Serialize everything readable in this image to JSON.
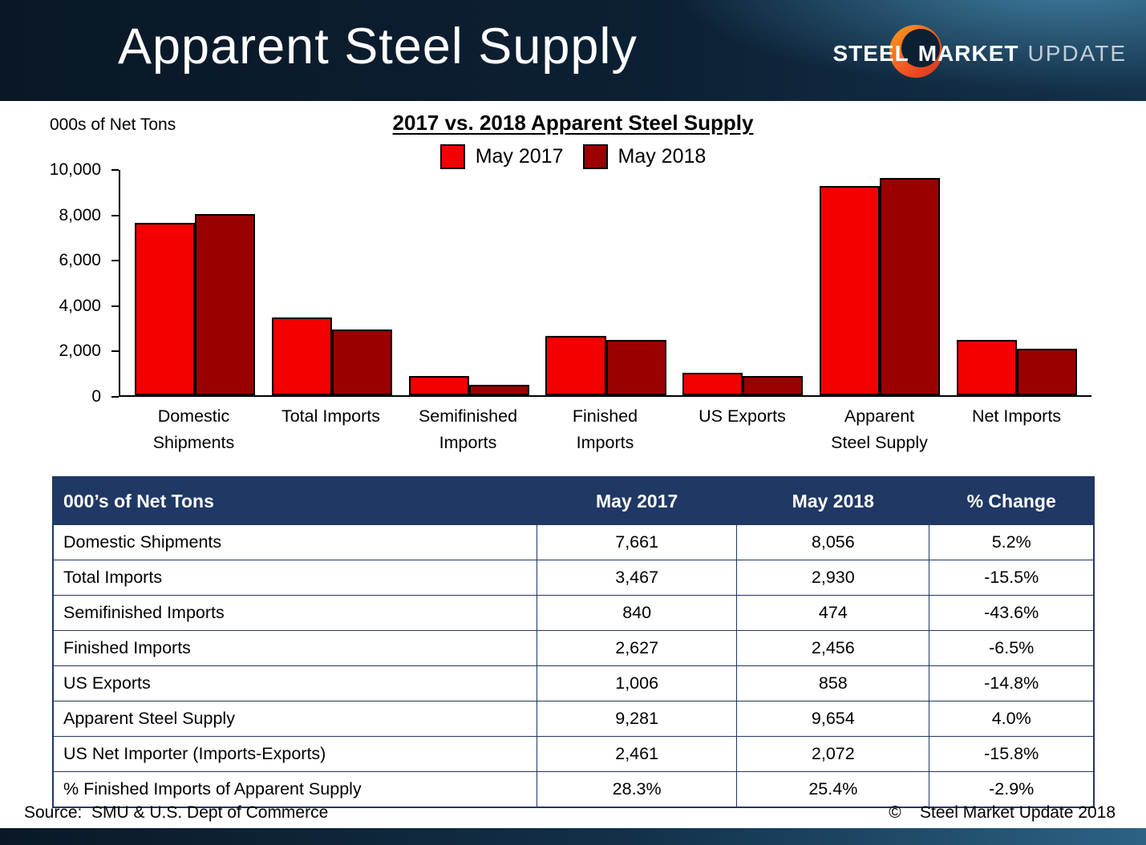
{
  "header": {
    "title": "Apparent Steel Supply",
    "logo": {
      "steel": "STEEL",
      "market": "MARKET",
      "update": "UPDATE"
    }
  },
  "chart_data": {
    "type": "bar",
    "title": "2017 vs. 2018 Apparent Steel Supply",
    "ylabel": "000s of Net Tons",
    "ylim": [
      0,
      10000
    ],
    "yticks": [
      0,
      2000,
      4000,
      6000,
      8000,
      10000
    ],
    "grid": false,
    "legend_position": "top",
    "categories": [
      "Domestic Shipments",
      "Total Imports",
      "Semifinished Imports",
      "Finished Imports",
      "US Exports",
      "Apparent Steel Supply",
      "Net Imports"
    ],
    "categories_display": [
      "Domestic\nShipments",
      "Total Imports",
      "Semifinished\nImports",
      "Finished\nImports",
      "US Exports",
      "Apparent\nSteel Supply",
      "Net Imports"
    ],
    "series": [
      {
        "name": "May 2017",
        "color": "#f40000",
        "values": [
          7661,
          3467,
          840,
          2627,
          1006,
          9281,
          2461
        ]
      },
      {
        "name": "May  2018",
        "color": "#9a0000",
        "values": [
          8056,
          2930,
          474,
          2456,
          858,
          9654,
          2072
        ]
      }
    ]
  },
  "table": {
    "headers": [
      "000’s of Net Tons",
      "May 2017",
      "May 2018",
      "% Change"
    ],
    "rows": [
      [
        "Domestic Shipments",
        "7,661",
        "8,056",
        "5.2%"
      ],
      [
        "Total Imports",
        "3,467",
        "2,930",
        "-15.5%"
      ],
      [
        "Semifinished Imports",
        "840",
        "474",
        "-43.6%"
      ],
      [
        "Finished Imports",
        "2,627",
        "2,456",
        "-6.5%"
      ],
      [
        "US Exports",
        "1,006",
        "858",
        "-14.8%"
      ],
      [
        "Apparent Steel Supply",
        "9,281",
        "9,654",
        "4.0%"
      ],
      [
        "US Net Importer (Imports-Exports)",
        "2,461",
        "2,072",
        "-15.8%"
      ],
      [
        "% Finished Imports of Apparent Supply",
        "28.3%",
        "25.4%",
        "-2.9%"
      ]
    ]
  },
  "footer": {
    "source": "Source:  SMU & U.S. Dept of Commerce",
    "copyright": "©    Steel Market Update 2018"
  }
}
